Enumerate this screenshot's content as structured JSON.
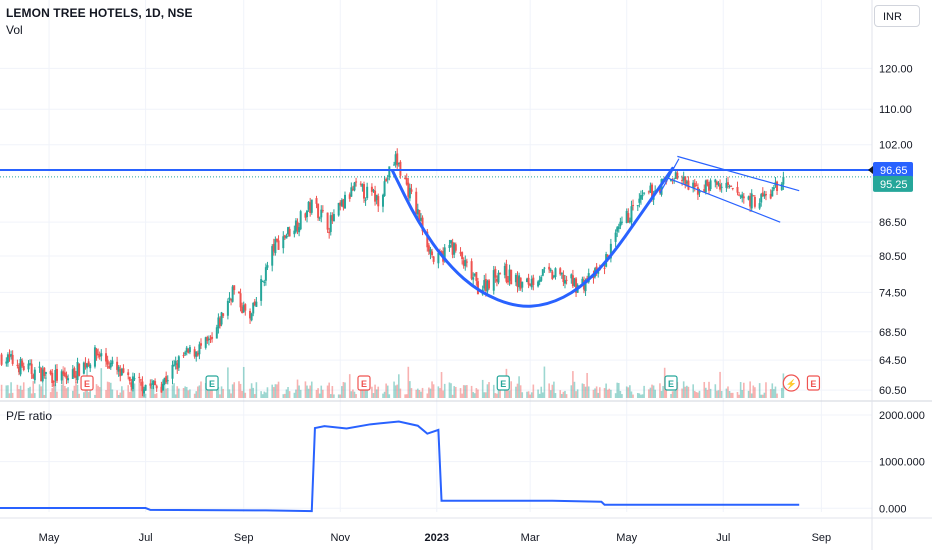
{
  "header": {
    "title": "LEMON TREE HOTELS, 1D, NSE",
    "volume_label": "Vol",
    "currency": "INR"
  },
  "colors": {
    "up": "#26a69a",
    "down": "#ef5350",
    "line": "#2962ff",
    "pattern": "#2962ff",
    "grid": "#f0f3fa",
    "price_badge_current": "#26a69a",
    "price_badge_level": "#2962ff"
  },
  "chart_data": [
    {
      "type": "candlestick",
      "title": "LEMON TREE HOTELS, 1D, NSE",
      "y_ticks": [
        "120.00",
        "110.00",
        "102.00",
        "86.50",
        "80.50",
        "74.50",
        "68.50",
        "64.50",
        "60.50"
      ],
      "y_tick_values": [
        120,
        110,
        102,
        86.5,
        80.5,
        74.5,
        68.5,
        64.5,
        60.5
      ],
      "scale": "log",
      "ylim": [
        59.5,
        128
      ],
      "x_ticks": [
        "May",
        "Jul",
        "Sep",
        "Nov",
        "2023",
        "Mar",
        "May",
        "Jul",
        "Sep"
      ],
      "x_tick_dates": [
        "2022-05-01",
        "2022-07-01",
        "2022-09-01",
        "2022-11-01",
        "2023-01-01",
        "2023-03-01",
        "2023-05-01",
        "2023-07-01",
        "2023-09-01"
      ],
      "xlim": [
        "2022-03-31",
        "2023-10-03"
      ],
      "price_path": [
        {
          "date": "2022-04-01",
          "price": 65.0
        },
        {
          "date": "2022-04-20",
          "price": 63.0
        },
        {
          "date": "2022-05-12",
          "price": 62.0
        },
        {
          "date": "2022-06-01",
          "price": 65.5
        },
        {
          "date": "2022-06-20",
          "price": 61.5
        },
        {
          "date": "2022-07-10",
          "price": 61.0
        },
        {
          "date": "2022-07-25",
          "price": 65.0
        },
        {
          "date": "2022-08-12",
          "price": 67.0
        },
        {
          "date": "2022-08-25",
          "price": 75.0
        },
        {
          "date": "2022-09-05",
          "price": 70.0
        },
        {
          "date": "2022-09-20",
          "price": 82.0
        },
        {
          "date": "2022-10-05",
          "price": 86.5
        },
        {
          "date": "2022-10-15",
          "price": 90.0
        },
        {
          "date": "2022-10-25",
          "price": 86.0
        },
        {
          "date": "2022-11-10",
          "price": 93.0
        },
        {
          "date": "2022-11-25",
          "price": 91.0
        },
        {
          "date": "2022-12-06",
          "price": 99.0
        },
        {
          "date": "2022-12-20",
          "price": 88.0
        },
        {
          "date": "2022-12-31",
          "price": 79.0
        },
        {
          "date": "2023-01-10",
          "price": 82.5
        },
        {
          "date": "2023-01-28",
          "price": 75.0
        },
        {
          "date": "2023-02-10",
          "price": 78.0
        },
        {
          "date": "2023-02-25",
          "price": 75.5
        },
        {
          "date": "2023-03-08",
          "price": 77.5
        },
        {
          "date": "2023-03-20",
          "price": 77.0
        },
        {
          "date": "2023-04-01",
          "price": 75.5
        },
        {
          "date": "2023-04-15",
          "price": 78.0
        },
        {
          "date": "2023-04-28",
          "price": 86.0
        },
        {
          "date": "2023-05-08",
          "price": 90.0
        },
        {
          "date": "2023-05-20",
          "price": 93.0
        },
        {
          "date": "2023-06-01",
          "price": 95.5
        },
        {
          "date": "2023-06-12",
          "price": 92.5
        },
        {
          "date": "2023-06-25",
          "price": 94.0
        },
        {
          "date": "2023-07-08",
          "price": 92.0
        },
        {
          "date": "2023-07-20",
          "price": 90.5
        },
        {
          "date": "2023-07-30",
          "price": 91.5
        },
        {
          "date": "2023-08-08",
          "price": 95.25
        }
      ],
      "horizontal_level": 96.65,
      "price_labels": [
        {
          "text": "96.65",
          "value": 96.65,
          "kind": "level"
        },
        {
          "text": "95.25",
          "value": 95.25,
          "kind": "last"
        }
      ],
      "cup_curve": [
        {
          "date": "2022-12-04",
          "price": 96.5
        },
        {
          "date": "2022-12-20",
          "price": 86.5
        },
        {
          "date": "2023-01-08",
          "price": 79.0
        },
        {
          "date": "2023-01-28",
          "price": 74.5
        },
        {
          "date": "2023-02-20",
          "price": 72.2
        },
        {
          "date": "2023-03-12",
          "price": 72.5
        },
        {
          "date": "2023-04-01",
          "price": 75.0
        },
        {
          "date": "2023-04-20",
          "price": 80.0
        },
        {
          "date": "2023-05-10",
          "price": 88.0
        },
        {
          "date": "2023-05-30",
          "price": 97.0
        }
      ],
      "handle_channel": {
        "upper": [
          {
            "date": "2023-06-02",
            "price": 99.5
          },
          {
            "date": "2023-08-18",
            "price": 92.5
          }
        ],
        "lower": [
          {
            "date": "2023-05-27",
            "price": 95.0
          },
          {
            "date": "2023-08-06",
            "price": 86.5
          }
        ],
        "breakout": [
          {
            "date": "2023-05-22",
            "price": 92.0
          },
          {
            "date": "2023-06-03",
            "price": 99.0
          }
        ]
      },
      "event_markers": [
        {
          "label": "E",
          "date": "2022-05-25",
          "color": "#ef5350"
        },
        {
          "label": "E",
          "date": "2022-08-12",
          "color": "#26a69a"
        },
        {
          "label": "E",
          "date": "2022-11-16",
          "color": "#ef5350"
        },
        {
          "label": "E",
          "date": "2023-02-12",
          "color": "#26a69a"
        },
        {
          "label": "E",
          "date": "2023-05-29",
          "color": "#26a69a"
        },
        {
          "label": "⚡",
          "date": "2023-08-13",
          "color": "#ef5350"
        },
        {
          "label": "E",
          "date": "2023-08-27",
          "color": "#ef5350"
        }
      ]
    },
    {
      "type": "line",
      "title": "P/E ratio",
      "y_ticks": [
        "2000.000",
        "1000.000",
        "0.000"
      ],
      "y_tick_values": [
        2000,
        1000,
        0
      ],
      "ylim": [
        -80,
        2150
      ],
      "series": [
        {
          "name": "P/E ratio",
          "points": [
            {
              "date": "2022-03-31",
              "value": 5
            },
            {
              "date": "2022-07-01",
              "value": 5
            },
            {
              "date": "2022-07-04",
              "value": -35
            },
            {
              "date": "2022-09-15",
              "value": -45
            },
            {
              "date": "2022-10-14",
              "value": -60
            },
            {
              "date": "2022-10-16",
              "value": 1720
            },
            {
              "date": "2022-10-22",
              "value": 1760
            },
            {
              "date": "2022-11-05",
              "value": 1710
            },
            {
              "date": "2022-11-20",
              "value": 1800
            },
            {
              "date": "2022-12-08",
              "value": 1860
            },
            {
              "date": "2022-12-20",
              "value": 1770
            },
            {
              "date": "2022-12-26",
              "value": 1600
            },
            {
              "date": "2023-01-02",
              "value": 1680
            },
            {
              "date": "2023-01-04",
              "value": 160
            },
            {
              "date": "2023-03-15",
              "value": 160
            },
            {
              "date": "2023-04-15",
              "value": 140
            },
            {
              "date": "2023-04-17",
              "value": 75
            },
            {
              "date": "2023-08-18",
              "value": 75
            }
          ]
        }
      ]
    }
  ]
}
